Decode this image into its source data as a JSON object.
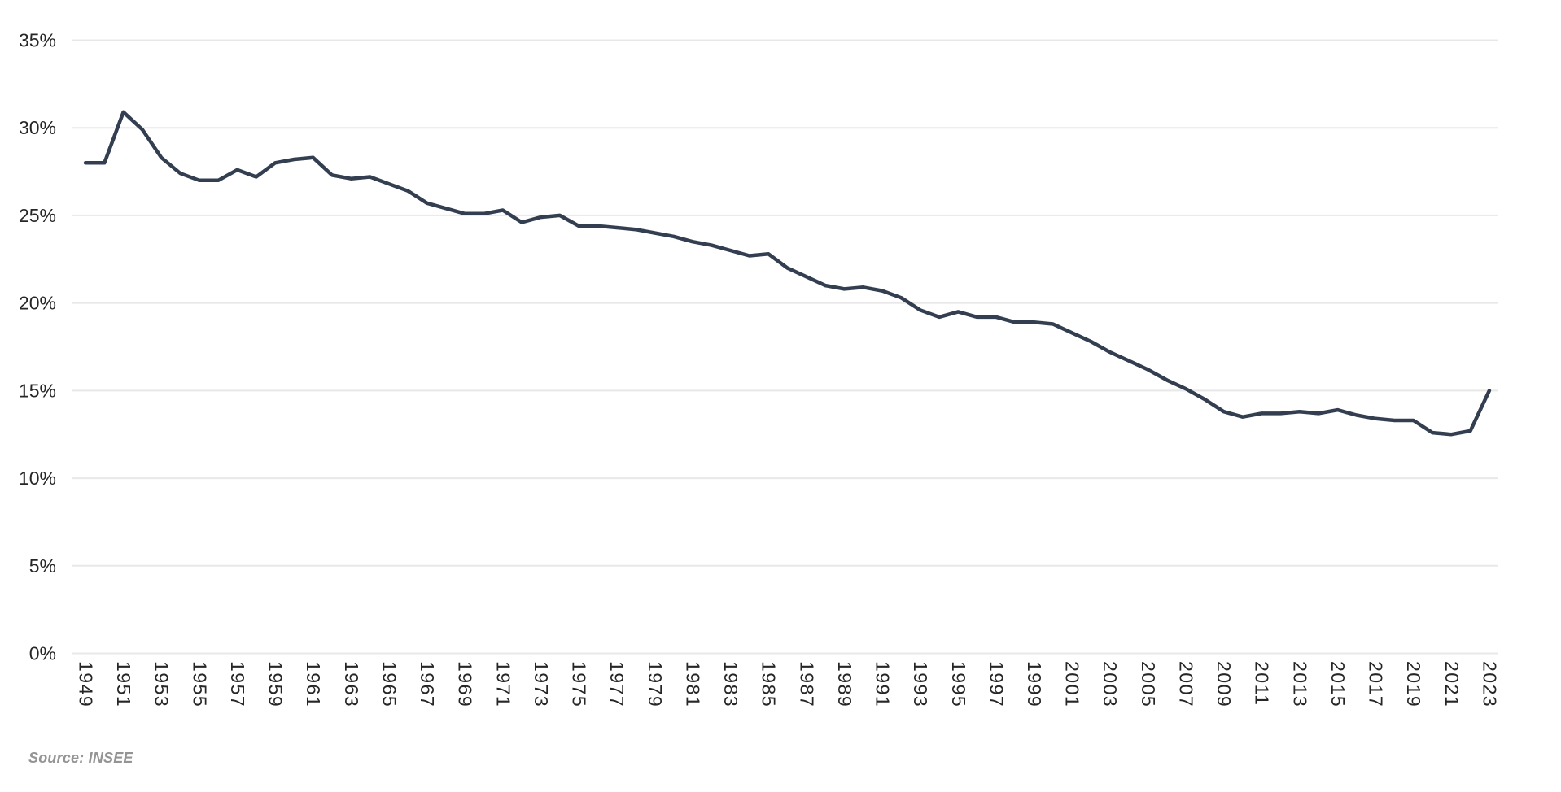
{
  "chart_data": {
    "type": "line",
    "title": "",
    "xlabel": "",
    "ylabel": "",
    "x": [
      1949,
      1950,
      1951,
      1952,
      1953,
      1954,
      1955,
      1956,
      1957,
      1958,
      1959,
      1960,
      1961,
      1962,
      1963,
      1964,
      1965,
      1966,
      1967,
      1968,
      1969,
      1970,
      1971,
      1972,
      1973,
      1974,
      1975,
      1976,
      1977,
      1978,
      1979,
      1980,
      1981,
      1982,
      1983,
      1984,
      1985,
      1986,
      1987,
      1988,
      1989,
      1990,
      1991,
      1992,
      1993,
      1994,
      1995,
      1996,
      1997,
      1998,
      1999,
      2000,
      2001,
      2002,
      2003,
      2004,
      2005,
      2006,
      2007,
      2008,
      2009,
      2010,
      2011,
      2012,
      2013,
      2014,
      2015,
      2016,
      2017,
      2018,
      2019,
      2020,
      2021,
      2022,
      2023
    ],
    "values": [
      28.0,
      28.0,
      30.9,
      29.9,
      28.3,
      27.4,
      27.0,
      27.0,
      27.6,
      27.2,
      28.0,
      28.2,
      28.3,
      27.3,
      27.1,
      27.2,
      26.8,
      26.4,
      25.7,
      25.4,
      25.1,
      25.1,
      25.3,
      24.6,
      24.9,
      25.0,
      24.4,
      24.4,
      24.3,
      24.2,
      24.0,
      23.8,
      23.5,
      23.3,
      23.0,
      22.7,
      22.8,
      22.0,
      21.5,
      21.0,
      20.8,
      20.9,
      20.7,
      20.3,
      19.6,
      19.2,
      19.5,
      19.2,
      19.2,
      18.9,
      18.9,
      18.8,
      18.3,
      17.8,
      17.2,
      16.7,
      16.2,
      15.6,
      15.1,
      14.5,
      13.8,
      13.5,
      13.7,
      13.7,
      13.8,
      13.7,
      13.9,
      13.6,
      13.4,
      13.3,
      13.3,
      12.6,
      12.5,
      12.7,
      15.0
    ],
    "ylim": [
      0,
      35
    ],
    "ytick_step": 5,
    "ytick_labels": [
      "0%",
      "5%",
      "10%",
      "15%",
      "20%",
      "25%",
      "30%",
      "35%"
    ],
    "xtick_labels": [
      "1949",
      "1951",
      "1953",
      "1955",
      "1957",
      "1959",
      "1961",
      "1963",
      "1965",
      "1967",
      "1969",
      "1971",
      "1973",
      "1975",
      "1977",
      "1979",
      "1981",
      "1983",
      "1985",
      "1987",
      "1989",
      "1991",
      "1993",
      "1995",
      "1997",
      "1999",
      "2001",
      "2003",
      "2005",
      "2007",
      "2009",
      "2011",
      "2013",
      "2015",
      "2017",
      "2019",
      "2021",
      "2023"
    ],
    "grid": "horizontal",
    "legend": "none",
    "line_color": "#333F50",
    "grid_color": "#E8E8E8",
    "tick_label_color": "#262626"
  },
  "source_note": "Source: INSEE"
}
